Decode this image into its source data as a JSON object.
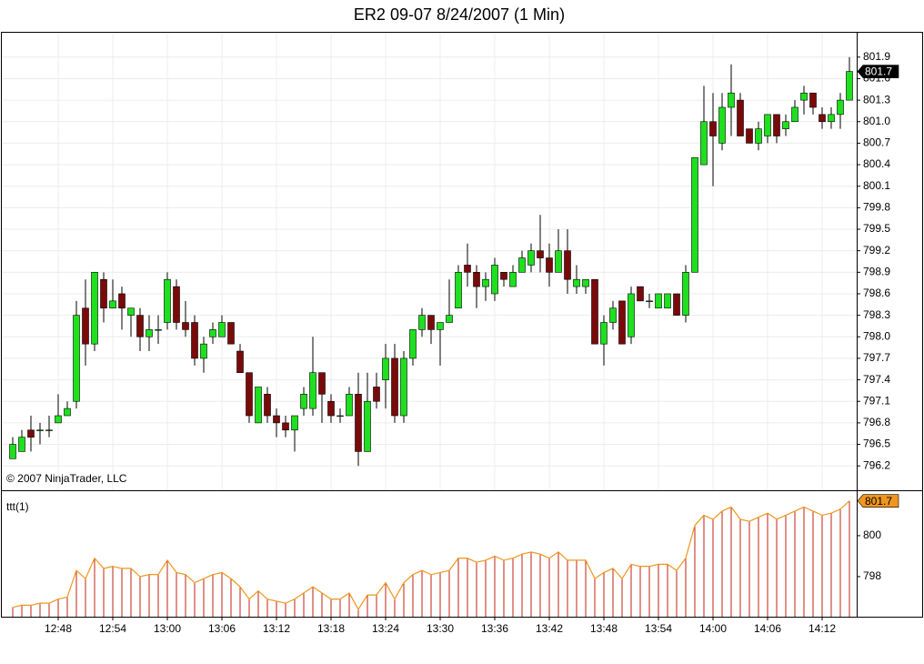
{
  "chart_data": [
    {
      "type": "candlestick",
      "title": "ER2 09-07  8/24/2007  (1 Min)",
      "annotation": "© 2007 NinjaTrader, LLC",
      "open": [
        796.3,
        796.4,
        796.7,
        796.7,
        796.7,
        796.8,
        796.9,
        797.1,
        798.4,
        797.9,
        798.8,
        798.4,
        798.6,
        798.3,
        798.3,
        798.0,
        798.1,
        798.2,
        798.7,
        798.2,
        798.2,
        797.7,
        798.0,
        798.0,
        798.2,
        797.8,
        797.5,
        796.8,
        797.2,
        796.9,
        796.8,
        796.7,
        797.0,
        797.0,
        797.5,
        797.1,
        796.9,
        796.9,
        797.2,
        796.4,
        797.3,
        797.4,
        797.7,
        796.9,
        797.7,
        798.1,
        798.3,
        798.1,
        798.2,
        798.4,
        799.0,
        798.9,
        798.7,
        798.6,
        798.9,
        798.7,
        798.9,
        799.0,
        799.2,
        799.1,
        798.9,
        799.2,
        798.7,
        798.7,
        798.8,
        797.9,
        798.2,
        798.5,
        798.0,
        798.7,
        798.5,
        798.4,
        798.4,
        798.6,
        798.3,
        798.9,
        800.4,
        801.0,
        800.7,
        801.2,
        801.3,
        800.9,
        800.7,
        800.8,
        801.1,
        800.9,
        801.0,
        801.3,
        801.4,
        801.1,
        801.0,
        801.1,
        801.3
      ],
      "high": [
        796.6,
        796.7,
        796.9,
        796.8,
        796.9,
        797.2,
        797.1,
        798.5,
        798.8,
        798.9,
        798.9,
        798.8,
        798.7,
        798.4,
        798.4,
        798.3,
        798.3,
        798.9,
        798.8,
        798.5,
        798.3,
        798.0,
        798.2,
        798.3,
        798.2,
        797.9,
        797.5,
        797.3,
        797.3,
        797.0,
        796.9,
        796.9,
        797.3,
        798.0,
        797.5,
        797.2,
        797.0,
        797.3,
        797.5,
        797.5,
        797.5,
        797.9,
        797.9,
        797.8,
        798.1,
        798.4,
        798.3,
        798.2,
        798.8,
        799.0,
        799.3,
        799.0,
        798.9,
        799.1,
        798.9,
        799.0,
        799.2,
        799.3,
        799.7,
        799.3,
        799.5,
        799.5,
        799.0,
        798.8,
        798.8,
        798.3,
        798.5,
        798.5,
        798.7,
        798.7,
        798.6,
        798.6,
        798.6,
        798.6,
        799.0,
        800.5,
        801.5,
        801.4,
        801.4,
        801.8,
        801.4,
        800.9,
        801.0,
        801.1,
        801.1,
        801.1,
        801.3,
        801.5,
        801.4,
        801.2,
        801.2,
        801.4,
        801.9
      ],
      "low": [
        796.3,
        796.4,
        796.4,
        796.5,
        796.6,
        796.8,
        796.9,
        797.0,
        797.6,
        797.8,
        798.2,
        798.4,
        798.1,
        798.0,
        797.8,
        797.8,
        797.9,
        798.1,
        798.1,
        798.0,
        797.6,
        797.5,
        797.9,
        798.0,
        797.9,
        797.5,
        796.8,
        796.8,
        796.8,
        796.6,
        796.6,
        796.4,
        796.9,
        796.9,
        796.8,
        796.8,
        796.8,
        796.9,
        796.2,
        796.4,
        797.0,
        797.0,
        796.8,
        796.8,
        797.6,
        798.0,
        797.9,
        797.6,
        798.2,
        798.4,
        798.7,
        798.4,
        798.5,
        798.5,
        798.7,
        798.7,
        798.9,
        798.9,
        798.9,
        798.7,
        798.9,
        798.6,
        798.6,
        798.6,
        797.9,
        797.6,
        798.1,
        797.9,
        797.9,
        798.5,
        798.4,
        798.4,
        798.4,
        798.3,
        798.2,
        798.9,
        800.4,
        800.1,
        800.6,
        800.8,
        800.8,
        800.7,
        800.6,
        800.7,
        800.7,
        800.8,
        801.0,
        801.1,
        801.1,
        800.9,
        800.9,
        800.9,
        801.3
      ],
      "close": [
        796.5,
        796.6,
        796.6,
        796.7,
        796.7,
        796.9,
        797.0,
        798.3,
        797.9,
        798.9,
        798.4,
        798.5,
        798.4,
        798.4,
        798.0,
        798.1,
        798.1,
        798.8,
        798.2,
        798.1,
        797.7,
        797.9,
        798.1,
        798.2,
        797.9,
        797.5,
        796.9,
        797.3,
        796.9,
        796.8,
        796.7,
        796.9,
        797.2,
        797.5,
        797.2,
        796.9,
        796.9,
        797.2,
        796.4,
        797.1,
        797.1,
        797.7,
        796.9,
        797.7,
        798.1,
        798.3,
        798.1,
        798.2,
        798.3,
        798.9,
        798.9,
        798.7,
        798.8,
        799.0,
        798.8,
        798.9,
        799.1,
        799.2,
        799.1,
        798.9,
        799.2,
        798.8,
        798.8,
        798.8,
        797.9,
        798.2,
        798.4,
        797.9,
        798.6,
        798.5,
        798.5,
        798.6,
        798.6,
        798.3,
        798.9,
        800.5,
        801.0,
        800.8,
        801.2,
        801.4,
        800.8,
        800.7,
        800.9,
        801.1,
        800.8,
        801.0,
        801.2,
        801.4,
        801.2,
        801.0,
        801.1,
        801.3,
        801.7
      ],
      "last_value_label": "801.7",
      "ylim": [
        795.86,
        802.24
      ],
      "yticks": [
        796.2,
        796.5,
        796.8,
        797.1,
        797.4,
        797.7,
        {
          "value": 798,
          "label": "798.0"
        },
        798.3,
        798.6,
        798.9,
        799.2,
        799.5,
        799.8,
        800.1,
        800.4,
        800.7,
        {
          "value": 801,
          "label": "801.0"
        },
        801.3,
        801.6,
        801.9
      ],
      "grid": true,
      "up_color": "#1ee01e",
      "down_color": "#7a0a0a"
    },
    {
      "type": "line",
      "label": "ttt(1)",
      "categories": [
        null,
        null,
        null,
        null,
        null,
        "12:48",
        null,
        null,
        null,
        null,
        null,
        "12:54",
        null,
        null,
        null,
        null,
        null,
        "13:00",
        null,
        null,
        null,
        null,
        null,
        "13:06",
        null,
        null,
        null,
        null,
        null,
        "13:12",
        null,
        null,
        null,
        null,
        null,
        "13:18",
        null,
        null,
        null,
        null,
        null,
        "13:24",
        null,
        null,
        null,
        null,
        null,
        "13:30",
        null,
        null,
        null,
        null,
        null,
        "13:36",
        null,
        null,
        null,
        null,
        null,
        "13:42",
        null,
        null,
        null,
        null,
        null,
        "13:48",
        null,
        null,
        null,
        null,
        null,
        "13:54",
        null,
        null,
        null,
        null,
        null,
        "14:00",
        null,
        null,
        null,
        null,
        null,
        "14:06",
        null,
        null,
        null,
        null,
        null,
        "14:12",
        null,
        null,
        null
      ],
      "values": [
        796.5,
        796.6,
        796.6,
        796.7,
        796.7,
        796.9,
        797.0,
        798.3,
        797.9,
        798.9,
        798.4,
        798.5,
        798.4,
        798.4,
        798.0,
        798.1,
        798.1,
        798.8,
        798.2,
        798.1,
        797.7,
        797.9,
        798.1,
        798.2,
        797.9,
        797.5,
        796.9,
        797.3,
        796.9,
        796.8,
        796.7,
        796.9,
        797.2,
        797.5,
        797.2,
        796.9,
        796.9,
        797.2,
        796.4,
        797.1,
        797.1,
        797.7,
        796.9,
        797.7,
        798.1,
        798.3,
        798.1,
        798.2,
        798.3,
        798.9,
        798.9,
        798.7,
        798.8,
        799.0,
        798.8,
        798.9,
        799.1,
        799.2,
        799.1,
        798.9,
        799.2,
        798.8,
        798.8,
        798.8,
        797.9,
        798.2,
        798.4,
        797.9,
        798.6,
        798.5,
        798.5,
        798.6,
        798.6,
        798.3,
        798.9,
        800.5,
        801.0,
        800.8,
        801.2,
        801.4,
        800.8,
        800.7,
        800.9,
        801.1,
        800.8,
        801.0,
        801.2,
        801.4,
        801.2,
        801.0,
        801.1,
        801.3,
        801.7
      ],
      "last_value_label": "801.7",
      "ylim": [
        796.04,
        802.13
      ],
      "yticks": [
        798,
        800
      ],
      "color": "#f0961e",
      "bar_color": "#c02010"
    }
  ]
}
